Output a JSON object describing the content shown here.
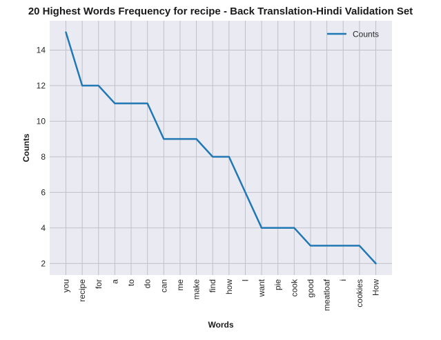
{
  "chart_data": {
    "type": "line",
    "title": "20 Highest Words Frequency for recipe - Back Translation-Hindi Validation Set",
    "xlabel": "Words",
    "ylabel": "Counts",
    "categories": [
      "you",
      "recipe",
      "for",
      "a",
      "to",
      "do",
      "can",
      "me",
      "make",
      "find",
      "how",
      "I",
      "want",
      "pie",
      "cook",
      "good",
      "meatloaf",
      "i",
      "cookies",
      "How"
    ],
    "series": [
      {
        "name": "Counts",
        "color": "#1f77b4",
        "values": [
          15,
          12,
          12,
          11,
          11,
          11,
          9,
          9,
          9,
          8,
          8,
          6,
          4,
          4,
          4,
          3,
          3,
          3,
          3,
          2
        ]
      }
    ],
    "ylim": [
      1.35,
      15.65
    ],
    "yticks": [
      2,
      4,
      6,
      8,
      10,
      12,
      14
    ],
    "grid": true,
    "legend_position": "top-right",
    "background": "#eaeaf2",
    "grid_color": "#c0c0c8"
  }
}
